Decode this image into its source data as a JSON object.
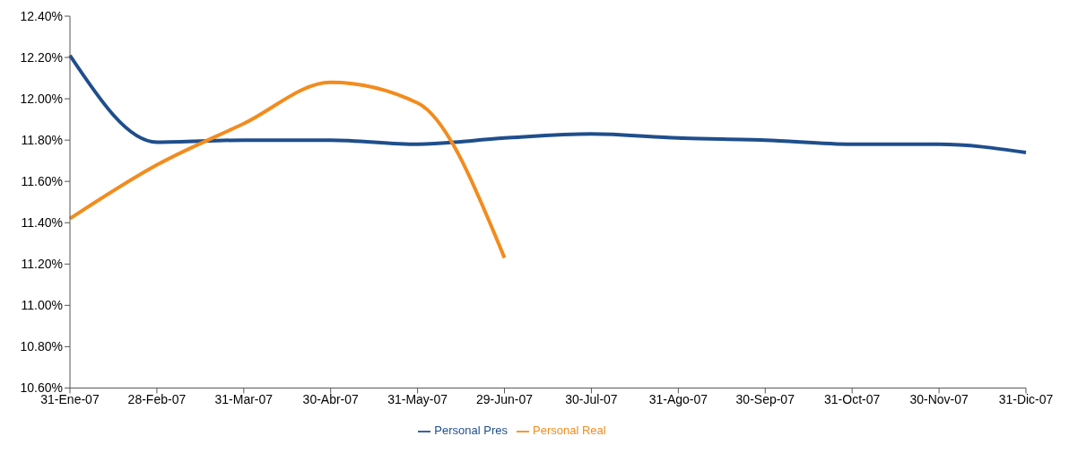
{
  "chart_data": {
    "type": "line",
    "categories": [
      "31-Ene-07",
      "28-Feb-07",
      "31-Mar-07",
      "30-Abr-07",
      "31-May-07",
      "29-Jun-07",
      "30-Jul-07",
      "31-Ago-07",
      "30-Sep-07",
      "31-Oct-07",
      "30-Nov-07",
      "31-Dic-07"
    ],
    "series": [
      {
        "name": "Personal Pres",
        "color": "#1f4e8c",
        "values": [
          12.21,
          11.79,
          11.8,
          11.8,
          11.78,
          11.81,
          11.83,
          11.81,
          11.8,
          11.78,
          11.78,
          11.74
        ]
      },
      {
        "name": "Personal Real",
        "color": "#f28c1e",
        "values": [
          11.42,
          11.68,
          11.88,
          12.08,
          11.98,
          11.23,
          null,
          null,
          null,
          null,
          null,
          null
        ]
      }
    ],
    "ylim": [
      10.6,
      12.4
    ],
    "yticks": [
      {
        "value": 10.6,
        "label": "10.60%"
      },
      {
        "value": 10.8,
        "label": "10.80%"
      },
      {
        "value": 11.0,
        "label": "11.00%"
      },
      {
        "value": 11.2,
        "label": "11.20%"
      },
      {
        "value": 11.4,
        "label": "11.40%"
      },
      {
        "value": 11.6,
        "label": "11.60%"
      },
      {
        "value": 11.8,
        "label": "11.80%"
      },
      {
        "value": 12.0,
        "label": "12.00%"
      },
      {
        "value": 12.2,
        "label": "12.20%"
      },
      {
        "value": 12.4,
        "label": "12.40%"
      }
    ],
    "grid": false,
    "legend": "bottom",
    "marker": "none",
    "line_style": "solid"
  }
}
